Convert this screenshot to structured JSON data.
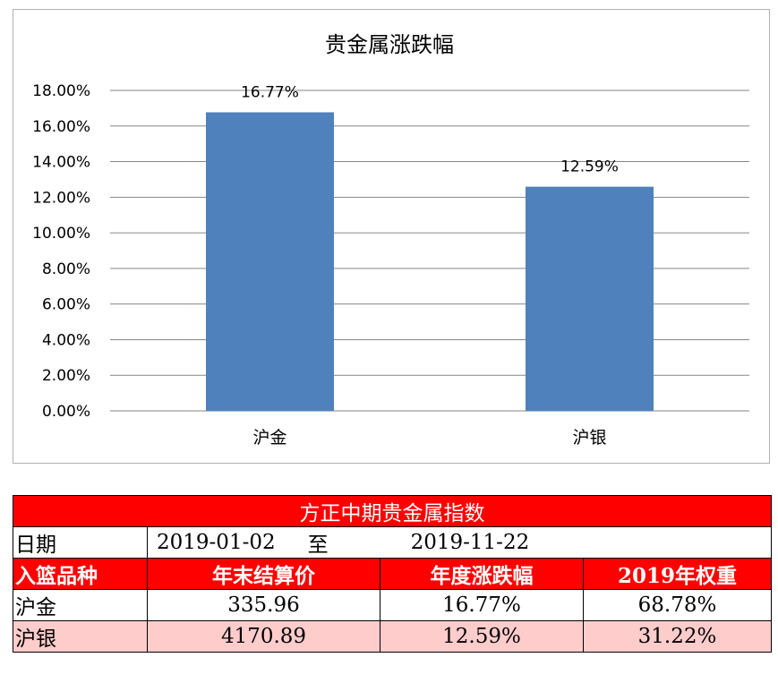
{
  "chart_data": {
    "type": "bar",
    "title": "贵金属涨跌幅",
    "categories": [
      "沪金",
      "沪银"
    ],
    "values": [
      16.77,
      12.59
    ],
    "data_labels": [
      "16.77%",
      "12.59%"
    ],
    "ylim": [
      0,
      18
    ],
    "yticks": [
      0,
      2,
      4,
      6,
      8,
      10,
      12,
      14,
      16,
      18
    ],
    "ytick_labels": [
      "0.00%",
      "2.00%",
      "4.00%",
      "6.00%",
      "8.00%",
      "10.00%",
      "12.00%",
      "14.00%",
      "16.00%",
      "18.00%"
    ],
    "grid": true,
    "bar_color": "#4f81bd"
  },
  "table": {
    "title": "方正中期贵金属指数",
    "date_label": "日期",
    "date_start": "2019-01-02",
    "date_sep": "至",
    "date_end": "2019-11-22",
    "headers": [
      "入篮品种",
      "年末结算价",
      "年度涨跌幅",
      "2019年权重"
    ],
    "rows": [
      {
        "name": "沪金",
        "price": "335.96",
        "change": "16.77%",
        "weight": "68.78%"
      },
      {
        "name": "沪银",
        "price": "4170.89",
        "change": "12.59%",
        "weight": "31.22%"
      }
    ],
    "header_color": "#ff0000",
    "pink_row_color": "#ffcccc"
  }
}
